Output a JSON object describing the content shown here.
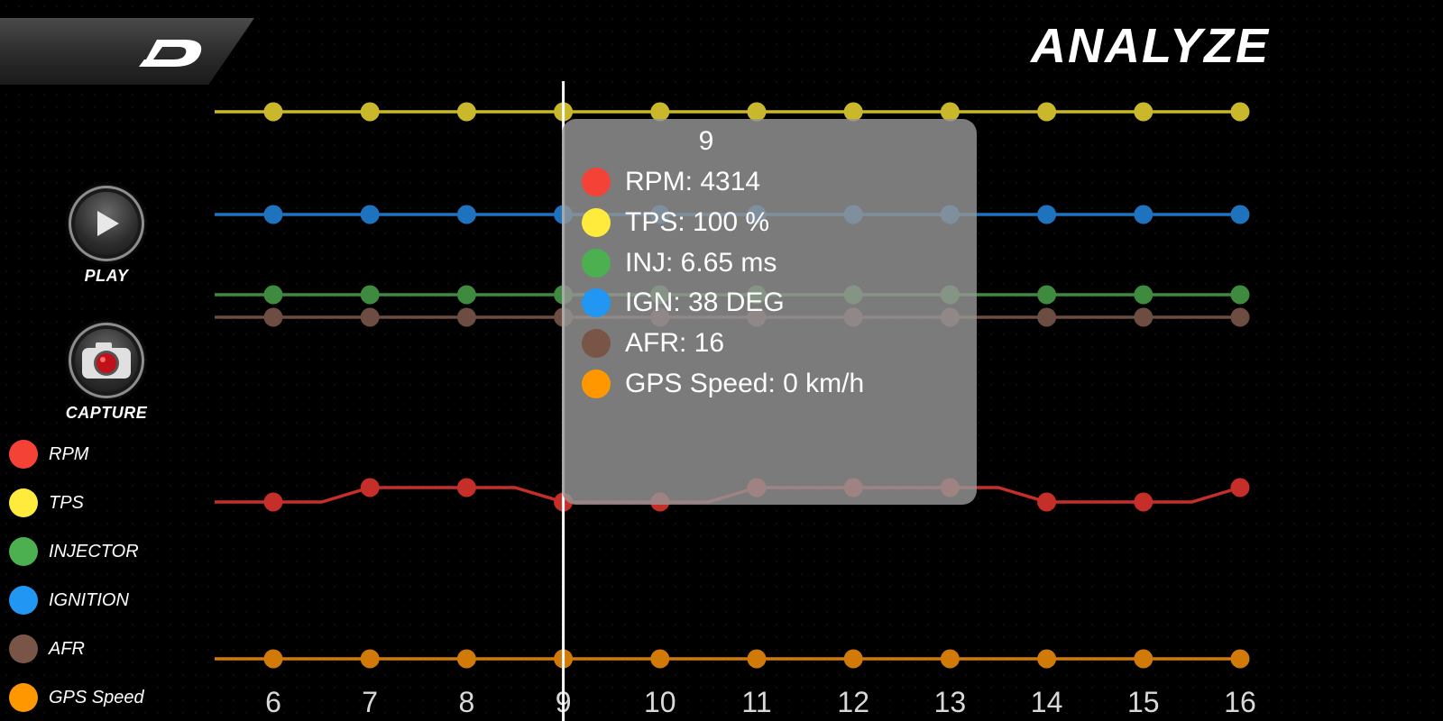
{
  "header": {
    "title": "ANALYZE"
  },
  "side_buttons": {
    "play_label": "PLAY",
    "capture_label": "CAPTURE"
  },
  "legend": [
    {
      "label": "RPM",
      "color": "#f44336"
    },
    {
      "label": "TPS",
      "color": "#ffeb3b"
    },
    {
      "label": "INJECTOR",
      "color": "#4caf50"
    },
    {
      "label": "IGNITION",
      "color": "#2196f3"
    },
    {
      "label": "AFR",
      "color": "#795548"
    },
    {
      "label": "GPS Speed",
      "color": "#ff9800"
    }
  ],
  "tooltip": {
    "title": "9",
    "rows": [
      {
        "text": "RPM: 4314",
        "color": "#f44336"
      },
      {
        "text": "TPS: 100 %",
        "color": "#ffeb3b"
      },
      {
        "text": "INJ: 6.65 ms",
        "color": "#4caf50"
      },
      {
        "text": "IGN: 38 DEG",
        "color": "#2196f3"
      },
      {
        "text": "AFR: 16",
        "color": "#795548"
      },
      {
        "text": "GPS Speed: 0 km/h",
        "color": "#ff9800"
      }
    ]
  },
  "chart_data": {
    "type": "line",
    "x": [
      6,
      7,
      8,
      9,
      10,
      11,
      12,
      13,
      14,
      15,
      16
    ],
    "selected_x": 9,
    "series": [
      {
        "name": "TPS",
        "color": "#c9b82c",
        "row": 0,
        "values": [
          100,
          100,
          100,
          100,
          100,
          100,
          100,
          100,
          100,
          100,
          100
        ]
      },
      {
        "name": "IGNITION",
        "color": "#1f72bd",
        "row": 1,
        "values": [
          38,
          38,
          38,
          38,
          38,
          38,
          38,
          38,
          38,
          38,
          38
        ]
      },
      {
        "name": "INJECTOR",
        "color": "#3e8a3e",
        "row": 2,
        "values": [
          6.65,
          6.65,
          6.65,
          6.65,
          6.65,
          6.65,
          6.65,
          6.65,
          6.65,
          6.65,
          6.65
        ]
      },
      {
        "name": "AFR",
        "color": "#6d4c41",
        "row": 3,
        "values": [
          16,
          16,
          16,
          16,
          16,
          16,
          16,
          16,
          16,
          16,
          16
        ]
      },
      {
        "name": "RPM",
        "color": "#c62e2a",
        "row": 4,
        "values": [
          4314,
          4330,
          4330,
          4314,
          4314,
          4330,
          4330,
          4330,
          4314,
          4314,
          4330
        ]
      },
      {
        "name": "GPS Speed",
        "color": "#d17a08",
        "row": 5,
        "values": [
          0,
          0,
          0,
          0,
          0,
          0,
          0,
          0,
          0,
          0,
          0
        ]
      }
    ]
  }
}
